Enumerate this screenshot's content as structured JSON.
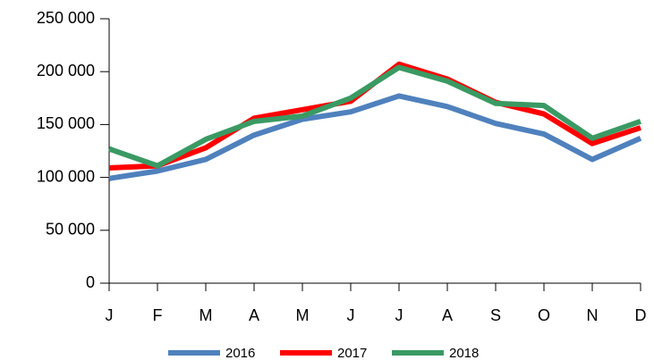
{
  "chart_data": {
    "type": "line",
    "categories": [
      "J",
      "F",
      "M",
      "A",
      "M",
      "J",
      "J",
      "A",
      "S",
      "O",
      "N",
      "D"
    ],
    "series": [
      {
        "name": "2016",
        "color": "#4f81bd",
        "values": [
          99000,
          106000,
          117000,
          140000,
          155000,
          162000,
          177000,
          167000,
          151000,
          141000,
          117000,
          137000
        ]
      },
      {
        "name": "2017",
        "color": "#ff0000",
        "values": [
          109000,
          111000,
          128000,
          156000,
          164000,
          172000,
          207000,
          193000,
          171000,
          160000,
          132000,
          147000
        ]
      },
      {
        "name": "2018",
        "color": "#3a9a63",
        "values": [
          127000,
          111000,
          136000,
          153000,
          158000,
          175000,
          204000,
          191000,
          170000,
          168000,
          137000,
          153000
        ]
      }
    ],
    "ylim": [
      0,
      250000
    ],
    "yticks": [
      0,
      {
        "value": 50000,
        "label": "50 000"
      },
      {
        "value": 100000,
        "label": "100 000"
      },
      {
        "value": 150000,
        "label": "150 000"
      },
      {
        "value": 200000,
        "label": "200 000"
      },
      {
        "value": 250000,
        "label": "250 000"
      }
    ],
    "legend": "bottom"
  }
}
